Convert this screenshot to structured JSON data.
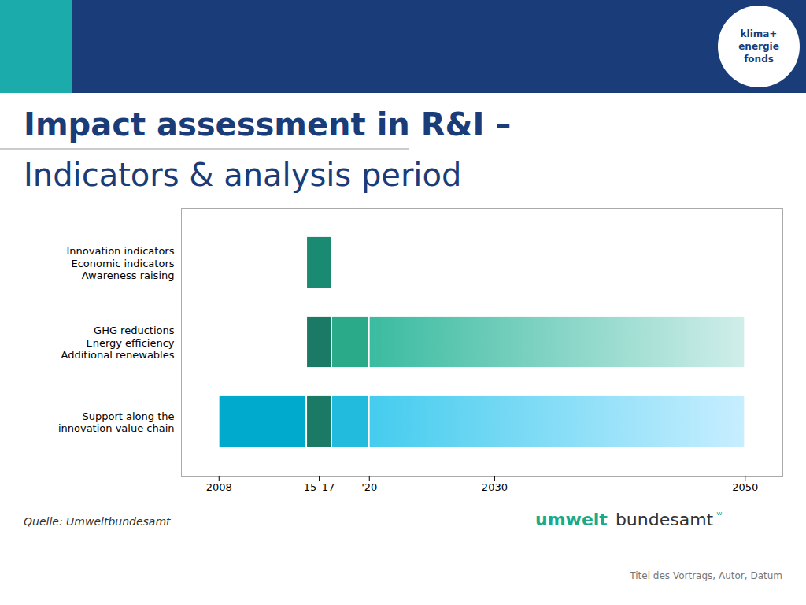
{
  "chart_data": {
    "type": "gantt",
    "orientation": "horizontal",
    "title": "Impact assessment in R&I –",
    "subtitle": "Indicators & analysis period",
    "categories": [
      "Innovation indicators\nEconomic indicators\nAwareness raising",
      "GHG reductions\nEnergy efficiency\nAdditional renewables",
      "Support along the\ninnovation value chain"
    ],
    "segments": [
      {
        "category": "Innovation indicators\nEconomic indicators\nAwareness raising",
        "start": 2015,
        "end": 2017,
        "color": "#1a8a72",
        "color_end": "#1a8a72"
      },
      {
        "category": "GHG reductions\nEnergy efficiency\nAdditional renewables",
        "start": 2015,
        "end": 2017,
        "color": "#1a7a65",
        "color_end": "#1a7a65"
      },
      {
        "category": "GHG reductions\nEnergy efficiency\nAdditional renewables",
        "start": 2017,
        "end": 2020,
        "color": "#2aaa88",
        "color_end": "#2aaa88"
      },
      {
        "category": "GHG reductions\nEnergy efficiency\nAdditional renewables",
        "start": 2020,
        "end": 2050,
        "color": "#3abba0",
        "color_end": "#d0eeea"
      },
      {
        "category": "Support along the\ninnovation value chain",
        "start": 2008,
        "end": 2015,
        "color": "#00aacc",
        "color_end": "#00aacc"
      },
      {
        "category": "Support along the\ninnovation value chain",
        "start": 2015,
        "end": 2017,
        "color": "#1a7a65",
        "color_end": "#1a7a65"
      },
      {
        "category": "Support along the\ninnovation value chain",
        "start": 2017,
        "end": 2020,
        "color": "#22bbdd",
        "color_end": "#22bbdd"
      },
      {
        "category": "Support along the\ninnovation value chain",
        "start": 2020,
        "end": 2050,
        "color": "#44ccee",
        "color_end": "#c8eeff"
      }
    ],
    "xlim": [
      2005,
      2053
    ],
    "xticks": [
      2008,
      {
        "value": 2016,
        "label": "15–17"
      },
      {
        "value": 2020,
        "label": "'20"
      },
      2030,
      2050
    ],
    "grid": false,
    "annotations": [
      "klima+",
      "energie",
      "fonds",
      "Quelle: Umweltbundesamt",
      "umwelt",
      "bundesamt",
      "ʷ",
      "Titel des Vortrags, Autor, Datum"
    ]
  }
}
